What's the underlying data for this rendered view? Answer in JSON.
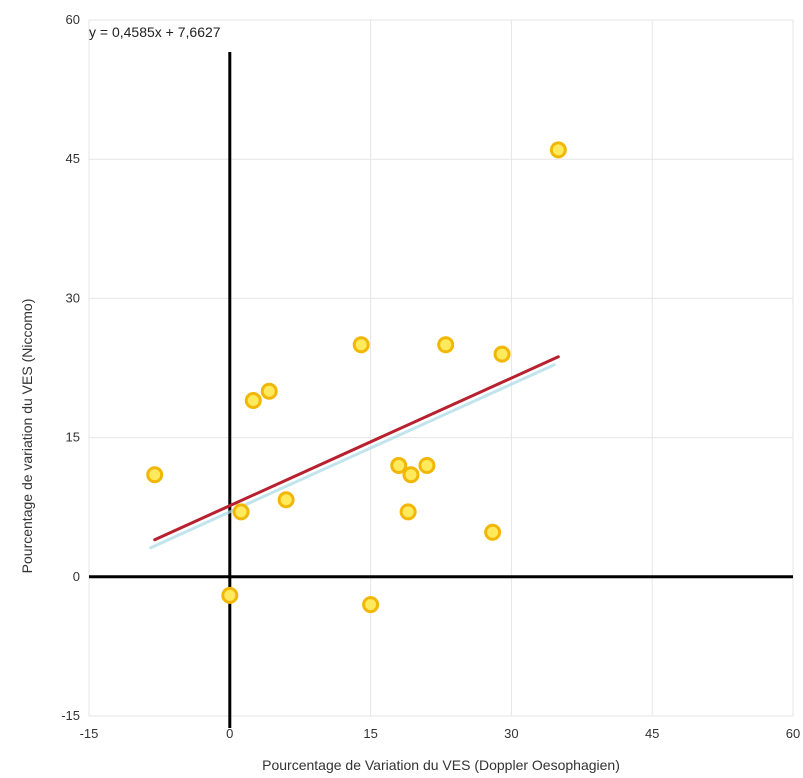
{
  "chart_data": {
    "type": "scatter",
    "title": "",
    "xlabel": "Pourcentage de Variation du VES (Doppler Oesophagien)",
    "ylabel": "Pourcentage de variation du VES (Niccomo)",
    "xlim": [
      -15,
      60
    ],
    "ylim": [
      -15,
      60
    ],
    "xticks": [
      -15,
      0,
      15,
      30,
      45,
      60
    ],
    "yticks": [
      -15,
      0,
      15,
      30,
      45,
      60
    ],
    "xtick_labels": [
      "-15",
      "0",
      "15",
      "30",
      "45",
      "60"
    ],
    "ytick_labels": [
      "-15",
      "0",
      "15",
      "30",
      "45",
      "60"
    ],
    "grid": true,
    "points": [
      {
        "x": -8,
        "y": 11
      },
      {
        "x": 0,
        "y": -2
      },
      {
        "x": 1.2,
        "y": 7
      },
      {
        "x": 2.5,
        "y": 19
      },
      {
        "x": 4.2,
        "y": 20
      },
      {
        "x": 6,
        "y": 8.3
      },
      {
        "x": 14,
        "y": 25
      },
      {
        "x": 15,
        "y": -3
      },
      {
        "x": 18,
        "y": 12
      },
      {
        "x": 19,
        "y": 7
      },
      {
        "x": 19.3,
        "y": 11
      },
      {
        "x": 21,
        "y": 12
      },
      {
        "x": 23,
        "y": 25
      },
      {
        "x": 28,
        "y": 4.8
      },
      {
        "x": 29,
        "y": 24
      },
      {
        "x": 35,
        "y": 46
      }
    ],
    "trendline": {
      "equation": "y = 0,4585x + 7,6627",
      "slope": 0.4585,
      "intercept": 7.6627,
      "x_range": [
        -8,
        35
      ]
    },
    "colors": {
      "point_fill": "#ffe95c",
      "point_stroke": "#f2b705",
      "trendline": "#b8202f",
      "trendline_shadow": "#a9d9e6",
      "axis_lines": "#000000",
      "grid": "#e6e6e6"
    }
  }
}
